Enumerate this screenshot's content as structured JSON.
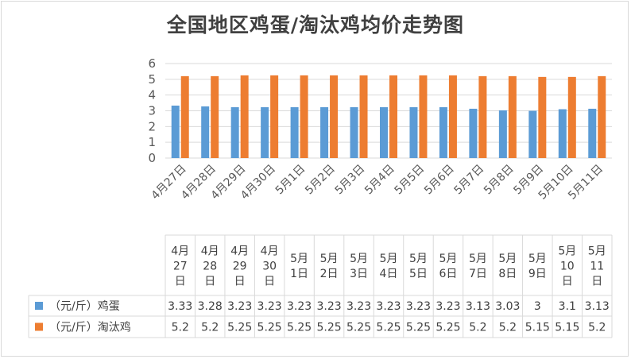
{
  "chart_data": {
    "type": "bar",
    "title": "全国地区鸡蛋/淘汰鸡均价走势图",
    "categories": [
      "4月27日",
      "4月28日",
      "4月29日",
      "4月30日",
      "5月1日",
      "5月2日",
      "5月3日",
      "5月4日",
      "5月5日",
      "5月6日",
      "5月7日",
      "5月8日",
      "5月9日",
      "5月10日",
      "5月11日"
    ],
    "table_headers": [
      [
        "4月",
        "27",
        "日"
      ],
      [
        "4月",
        "28",
        "日"
      ],
      [
        "4月",
        "29",
        "日"
      ],
      [
        "4月",
        "30",
        "日"
      ],
      [
        "5月",
        "1日"
      ],
      [
        "5月",
        "2日"
      ],
      [
        "5月",
        "3日"
      ],
      [
        "5月",
        "4日"
      ],
      [
        "5月",
        "5日"
      ],
      [
        "5月",
        "6日"
      ],
      [
        "5月",
        "7日"
      ],
      [
        "5月",
        "8日"
      ],
      [
        "5月",
        "9日"
      ],
      [
        "5月",
        "10",
        "日"
      ],
      [
        "5月",
        "11",
        "日"
      ]
    ],
    "series": [
      {
        "name": "（元/斤）鸡蛋",
        "color": "#5b9bd5",
        "values": [
          3.33,
          3.28,
          3.23,
          3.23,
          3.23,
          3.23,
          3.23,
          3.23,
          3.23,
          3.23,
          3.13,
          3.03,
          3,
          3.1,
          3.13
        ],
        "labels": [
          "3.33",
          "3.28",
          "3.23",
          "3.23",
          "3.23",
          "3.23",
          "3.23",
          "3.23",
          "3.23",
          "3.23",
          "3.13",
          "3.03",
          "3",
          "3.1",
          "3.13"
        ]
      },
      {
        "name": "（元/斤）淘汰鸡",
        "color": "#ed7d31",
        "values": [
          5.2,
          5.2,
          5.25,
          5.25,
          5.25,
          5.25,
          5.25,
          5.25,
          5.25,
          5.25,
          5.2,
          5.2,
          5.15,
          5.15,
          5.2
        ],
        "labels": [
          "5.2",
          "5.2",
          "5.25",
          "5.25",
          "5.25",
          "5.25",
          "5.25",
          "5.25",
          "5.25",
          "5.25",
          "5.2",
          "5.2",
          "5.15",
          "5.15",
          "5.2"
        ]
      }
    ],
    "ylim": [
      0,
      6
    ],
    "yticks": [
      0,
      1,
      2,
      3,
      4,
      5,
      6
    ],
    "grid": true,
    "legend": "data-table"
  }
}
